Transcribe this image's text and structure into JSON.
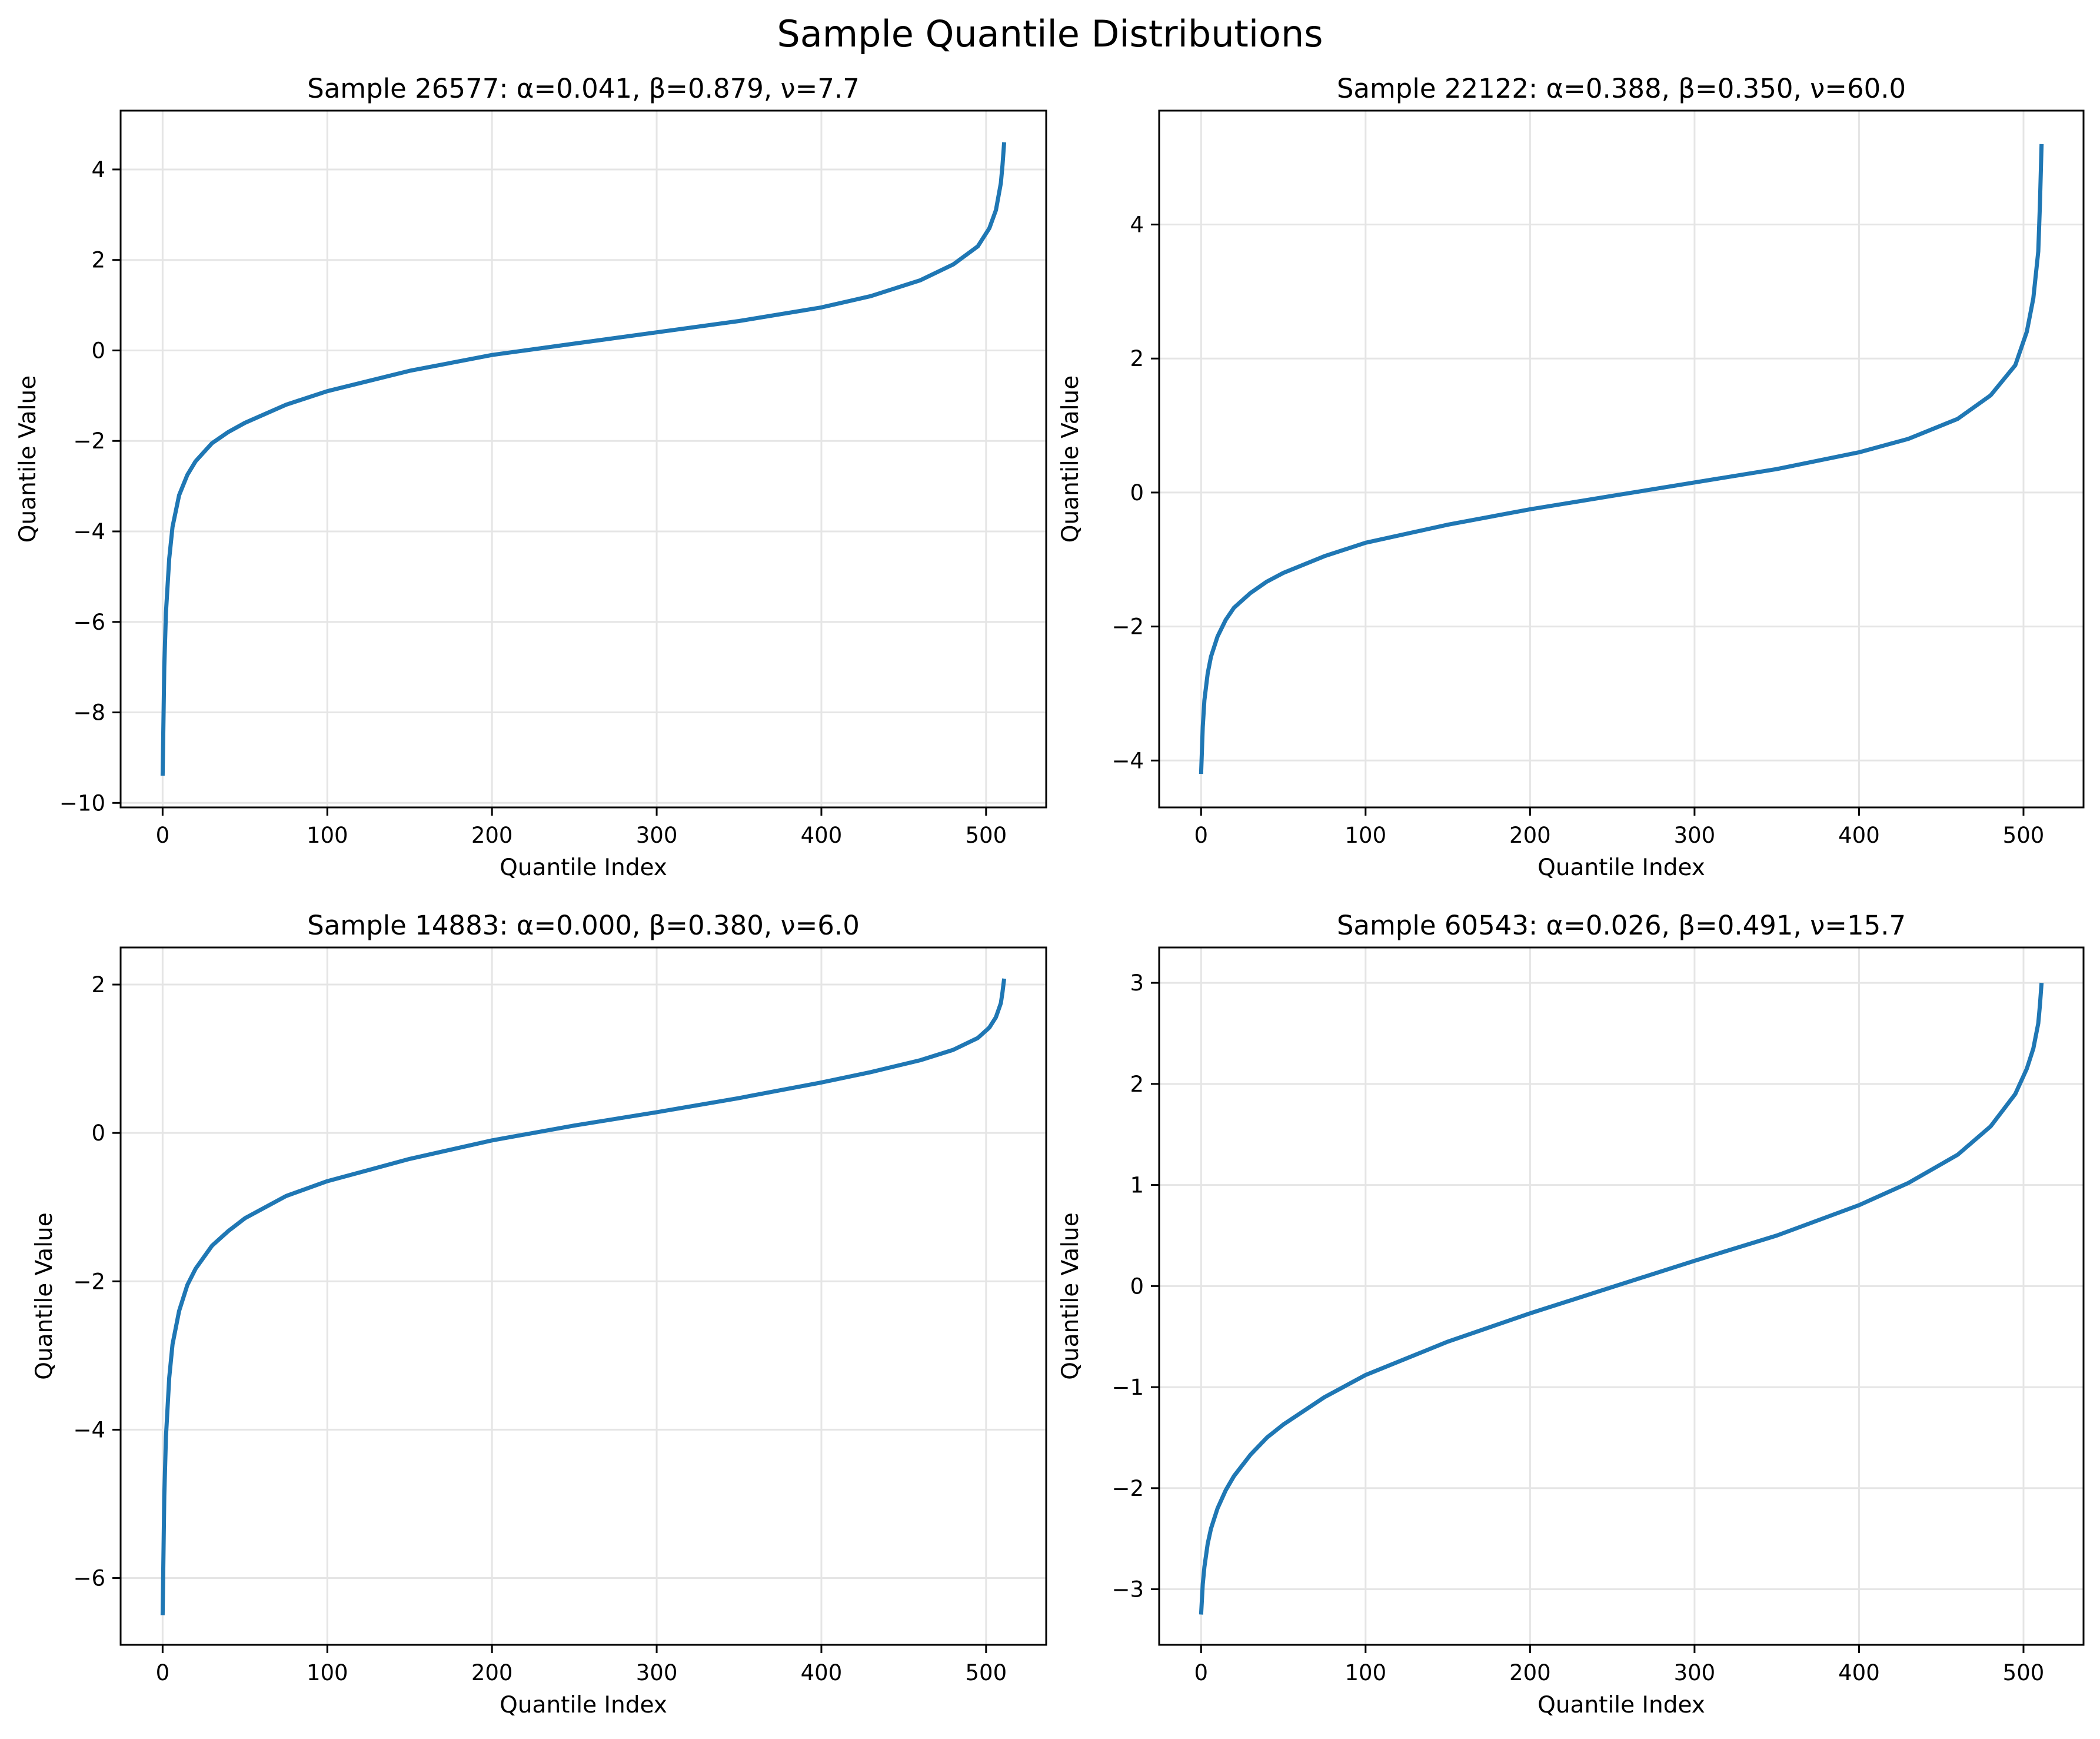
{
  "figure": {
    "title": "Sample Quantile Distributions",
    "line_color": "#1f77b4",
    "grid_color": "#e5e5e5"
  },
  "chart_data": [
    {
      "type": "line",
      "title": "Sample 26577: α=0.041, β=0.879, ν=7.7",
      "xlabel": "Quantile Index",
      "ylabel": "Quantile Value",
      "xlim": [
        -25.5,
        536.5
      ],
      "ylim": [
        -10.1,
        5.3
      ],
      "xticks": [
        0,
        100,
        200,
        300,
        400,
        500
      ],
      "yticks": [
        -10,
        -8,
        -6,
        -4,
        -2,
        0,
        2,
        4
      ],
      "grid": true,
      "series": [
        {
          "name": "quantiles",
          "x": [
            0,
            1,
            2,
            4,
            6,
            10,
            15,
            20,
            30,
            40,
            50,
            75,
            100,
            150,
            200,
            250,
            300,
            350,
            400,
            430,
            460,
            480,
            495,
            502,
            506,
            509,
            510,
            511
          ],
          "y": [
            -9.4,
            -7.0,
            -5.8,
            -4.6,
            -3.9,
            -3.2,
            -2.75,
            -2.45,
            -2.05,
            -1.8,
            -1.6,
            -1.2,
            -0.9,
            -0.45,
            -0.1,
            0.15,
            0.4,
            0.65,
            0.95,
            1.2,
            1.55,
            1.9,
            2.3,
            2.7,
            3.1,
            3.7,
            4.1,
            4.6
          ]
        }
      ]
    },
    {
      "type": "line",
      "title": "Sample 22122: α=0.388, β=0.350, ν=60.0",
      "xlabel": "Quantile Index",
      "ylabel": "Quantile Value",
      "xlim": [
        -25.5,
        536.5
      ],
      "ylim": [
        -4.7,
        5.7
      ],
      "xticks": [
        0,
        100,
        200,
        300,
        400,
        500
      ],
      "yticks": [
        -4,
        -2,
        0,
        2,
        4
      ],
      "grid": true,
      "series": [
        {
          "name": "quantiles",
          "x": [
            0,
            1,
            2,
            4,
            6,
            10,
            15,
            20,
            30,
            40,
            50,
            75,
            100,
            150,
            200,
            250,
            300,
            350,
            400,
            430,
            460,
            480,
            495,
            502,
            506,
            509,
            510,
            511
          ],
          "y": [
            -4.2,
            -3.5,
            -3.1,
            -2.7,
            -2.45,
            -2.15,
            -1.9,
            -1.72,
            -1.5,
            -1.33,
            -1.2,
            -0.95,
            -0.75,
            -0.48,
            -0.25,
            -0.05,
            0.15,
            0.35,
            0.6,
            0.8,
            1.1,
            1.45,
            1.9,
            2.4,
            2.9,
            3.6,
            4.3,
            5.2
          ]
        }
      ]
    },
    {
      "type": "line",
      "title": "Sample 14883: α=0.000, β=0.380, ν=6.0",
      "xlabel": "Quantile Index",
      "ylabel": "Quantile Value",
      "xlim": [
        -25.5,
        536.5
      ],
      "ylim": [
        -6.9,
        2.5
      ],
      "xticks": [
        0,
        100,
        200,
        300,
        400,
        500
      ],
      "yticks": [
        -6,
        -4,
        -2,
        0,
        2
      ],
      "grid": true,
      "series": [
        {
          "name": "quantiles",
          "x": [
            0,
            1,
            2,
            4,
            6,
            10,
            15,
            20,
            30,
            40,
            50,
            75,
            100,
            150,
            200,
            250,
            300,
            350,
            400,
            430,
            460,
            480,
            495,
            502,
            506,
            509,
            510,
            511
          ],
          "y": [
            -6.5,
            -4.9,
            -4.1,
            -3.3,
            -2.85,
            -2.4,
            -2.05,
            -1.83,
            -1.52,
            -1.32,
            -1.15,
            -0.85,
            -0.65,
            -0.35,
            -0.1,
            0.1,
            0.28,
            0.47,
            0.68,
            0.82,
            0.98,
            1.12,
            1.28,
            1.42,
            1.56,
            1.75,
            1.9,
            2.08
          ]
        }
      ]
    },
    {
      "type": "line",
      "title": "Sample 60543: α=0.026, β=0.491, ν=15.7",
      "xlabel": "Quantile Index",
      "ylabel": "Quantile Value",
      "xlim": [
        -25.5,
        536.5
      ],
      "ylim": [
        -3.55,
        3.35
      ],
      "xticks": [
        0,
        100,
        200,
        300,
        400,
        500
      ],
      "yticks": [
        -3,
        -2,
        -1,
        0,
        1,
        2,
        3
      ],
      "grid": true,
      "series": [
        {
          "name": "quantiles",
          "x": [
            0,
            1,
            2,
            4,
            6,
            10,
            15,
            20,
            30,
            40,
            50,
            75,
            100,
            150,
            200,
            250,
            300,
            350,
            400,
            430,
            460,
            480,
            495,
            502,
            506,
            509,
            510,
            511
          ],
          "y": [
            -3.25,
            -2.95,
            -2.78,
            -2.55,
            -2.4,
            -2.2,
            -2.02,
            -1.88,
            -1.67,
            -1.5,
            -1.37,
            -1.1,
            -0.88,
            -0.55,
            -0.27,
            -0.01,
            0.25,
            0.5,
            0.8,
            1.02,
            1.3,
            1.58,
            1.9,
            2.15,
            2.35,
            2.6,
            2.78,
            3.0
          ]
        }
      ]
    }
  ]
}
